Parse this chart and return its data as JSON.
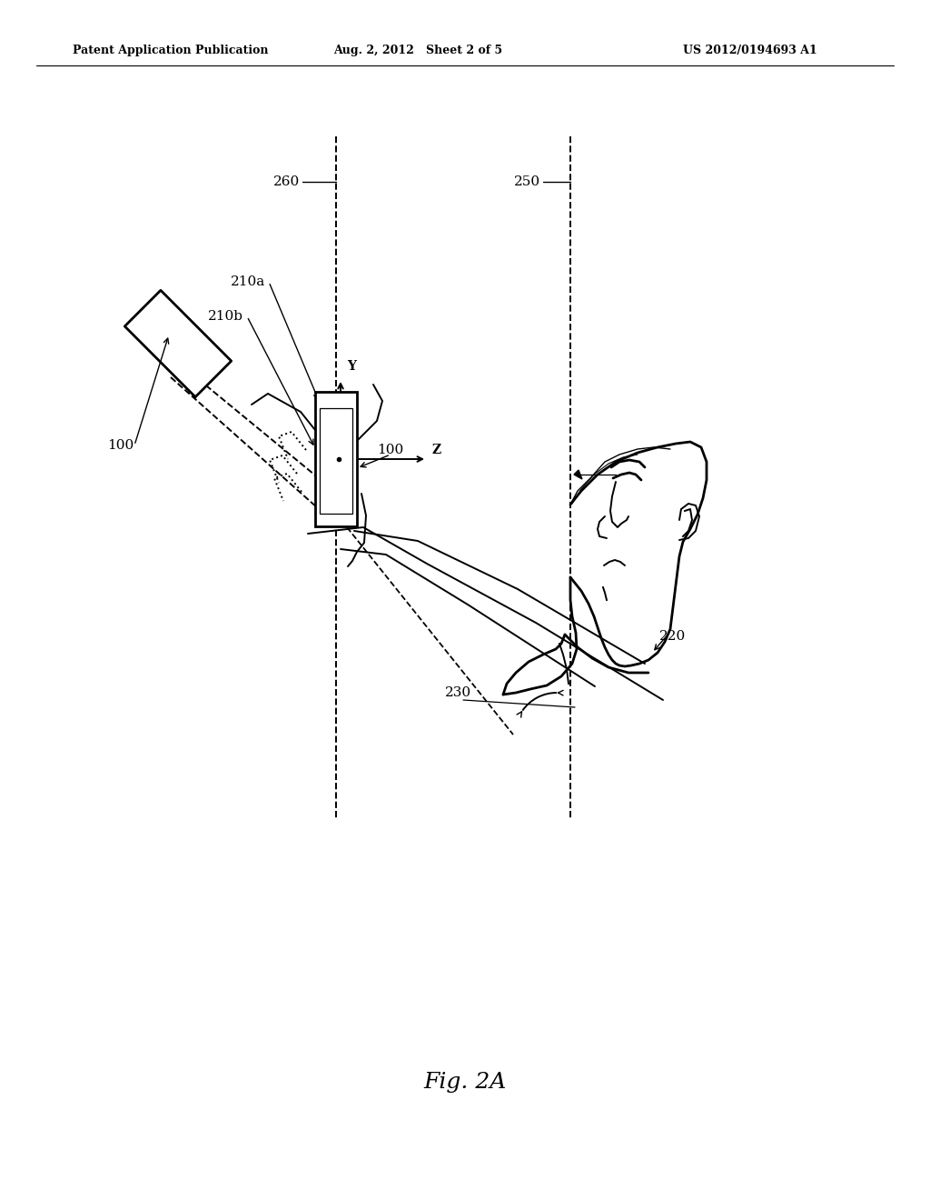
{
  "background_color": "#ffffff",
  "header_left": "Patent Application Publication",
  "header_mid": "Aug. 2, 2012   Sheet 2 of 5",
  "header_right": "US 2012/0194693 A1",
  "caption": "Fig. 2A"
}
